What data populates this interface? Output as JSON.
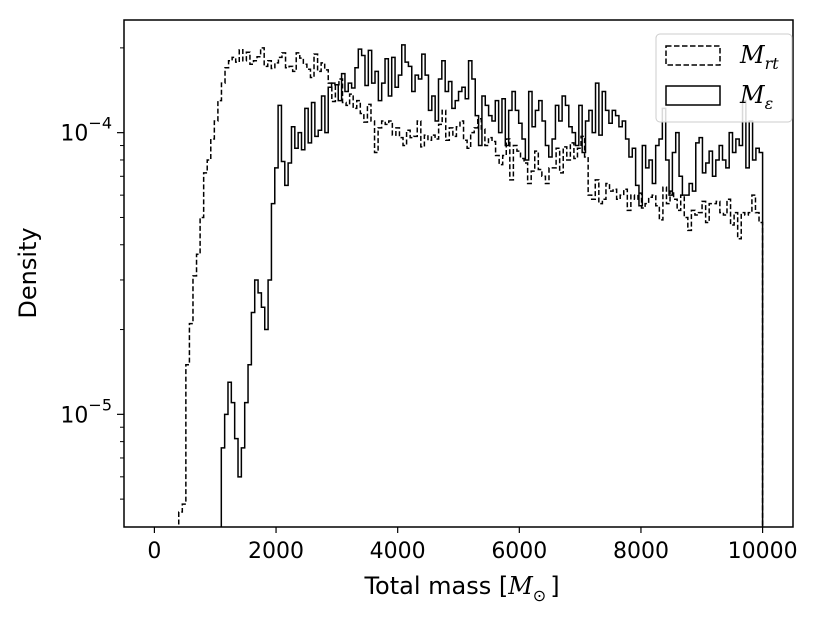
{
  "chart_data": {
    "type": "histogram",
    "xlabel": {
      "text": "Total mass [",
      "sym": "M",
      "sub": "⊙",
      "close": "]"
    },
    "ylabel": "Density",
    "xlim": [
      -500,
      10500
    ],
    "ylim_log10": [
      -5.4,
      -3.6
    ],
    "yscale": "log",
    "x_ticks": [
      0,
      2000,
      4000,
      6000,
      8000,
      10000
    ],
    "x_tick_labels": [
      "0",
      "2000",
      "4000",
      "6000",
      "8000",
      "10000"
    ],
    "y_major_ticks": [
      {
        "exp": -5,
        "base": "10",
        "sup": "−5"
      },
      {
        "exp": -4,
        "base": "10",
        "sup": "−4"
      }
    ],
    "y_minor_ticks": [
      5e-06,
      6e-06,
      7e-06,
      8e-06,
      9e-06,
      2e-05,
      3e-05,
      4e-05,
      5e-05,
      6e-05,
      7e-05,
      8e-05,
      9e-05,
      0.0002
    ],
    "grid": false,
    "legend": {
      "placement": "top-right",
      "entries": [
        {
          "sym": "M",
          "sub": "rt",
          "style": "dashed"
        },
        {
          "sym": "M",
          "sub": "ε",
          "style": "solid"
        }
      ]
    },
    "series": [
      {
        "style": "dashed",
        "color": "#000000",
        "edges": [
          400,
          10000
        ],
        "values": [
          4.5e-06,
          4.8e-06,
          1.5e-05,
          2.1e-05,
          3.1e-05,
          3.7e-05,
          5e-05,
          7.2e-05,
          8e-05,
          9.5e-05,
          0.00011,
          0.00013,
          0.00015,
          0.00017,
          0.00018,
          0.000185,
          0.000178,
          0.000197,
          0.00018,
          0.000193,
          0.000175,
          0.00018,
          0.000186,
          0.0002,
          0.000172,
          0.00018,
          0.000169,
          0.000177,
          0.000185,
          0.000192,
          0.00017,
          0.000172,
          0.000165,
          0.000192,
          0.000184,
          0.000175,
          0.000168,
          0.000157,
          0.00019,
          0.000165,
          0.000177,
          0.000167,
          0.00015,
          0.000129,
          0.000148,
          0.000155,
          0.000128,
          0.000125,
          0.000137,
          0.000122,
          0.00013,
          0.000117,
          0.000109,
          0.000126,
          0.00011,
          8.5e-05,
          0.000104,
          0.00011,
          0.000107,
          0.00011,
          9.8e-05,
          0.000104,
          9.6e-05,
          9e-05,
          0.000102,
          9.6e-05,
          9.7e-05,
          0.00011,
          8.9e-05,
          9.8e-05,
          9.4e-05,
          9.8e-05,
          9.5e-05,
          0.000107,
          0.00012,
          9.4e-05,
          0.000104,
          9.7e-05,
          0.000105,
          0.00011,
          9.4e-05,
          8.8e-05,
          0.0001,
          0.000104,
          0.000112,
          0.000103,
          9e-05,
          9.6e-05,
          9.3e-05,
          8.3e-05,
          7.7e-05,
          8.3e-05,
          9.5e-05,
          6.8e-05,
          9e-05,
          8.6e-05,
          8.1e-05,
          7.8e-05,
          6.6e-05,
          7.3e-05,
          8.6e-05,
          7.4e-05,
          7e-05,
          6.6e-05,
          7.5e-05,
          7.5e-05,
          8.8e-05,
          7.2e-05,
          8.9e-05,
          8e-05,
          9.2e-05,
          8.1e-05,
          8.8e-05,
          9.7e-05,
          8.2e-05,
          6e-05,
          5.8e-05,
          6.8e-05,
          5.6e-05,
          5.8e-05,
          6.6e-05,
          6.2e-05,
          6.3e-05,
          5.8e-05,
          6e-05,
          6.3e-05,
          5.3e-05,
          6e-05,
          5.8e-05,
          6.1e-05,
          5.4e-05,
          5.6e-05,
          5.9e-05,
          6e-05,
          5.5e-05,
          4.9e-05,
          6.4e-05,
          5.6e-05,
          6.2e-05,
          5.8e-05,
          5.3e-05,
          6e-05,
          5e-05,
          4.5e-05,
          5.3e-05,
          5.1e-05,
          5.2e-05,
          5.7e-05,
          4.8e-05,
          5.6e-05,
          5.6e-05,
          5.7e-05,
          5.2e-05,
          5.1e-05,
          5.8e-05,
          4.7e-05,
          5.2e-05,
          4.2e-05,
          5.2e-05,
          5.1e-05,
          5.2e-05,
          6e-05,
          5.2e-05,
          4.8e-05
        ]
      },
      {
        "style": "solid",
        "color": "#000000",
        "edges": [
          1100,
          10000
        ],
        "values": [
          7.6e-06,
          1e-05,
          1.3e-05,
          1.1e-05,
          8.2e-06,
          6e-06,
          7.6e-06,
          1.1e-05,
          1.5e-05,
          2.3e-05,
          3e-05,
          2.7e-05,
          2.4e-05,
          2e-05,
          3e-05,
          5.6e-05,
          7.5e-05,
          0.000125,
          7.9e-05,
          6.5e-05,
          7.8e-05,
          0.000105,
          8.8e-05,
          0.0001,
          8.7e-05,
          0.000122,
          9.2e-05,
          0.000128,
          9.7e-05,
          0.000102,
          0.000135,
          0.0001,
          0.000145,
          0.00015,
          0.000148,
          0.00013,
          0.000162,
          0.00014,
          0.00015,
          0.000144,
          0.00017,
          0.000198,
          0.000188,
          0.000147,
          0.000196,
          0.00015,
          0.000165,
          0.00013,
          0.00015,
          0.000183,
          0.000135,
          0.000185,
          0.000145,
          0.00016,
          0.000205,
          0.000178,
          0.000172,
          0.00014,
          0.00016,
          0.000155,
          0.00019,
          0.00016,
          0.00012,
          0.000135,
          0.00011,
          0.000155,
          0.00018,
          0.00014,
          0.000152,
          0.000122,
          0.00013,
          0.00014,
          0.000145,
          0.000132,
          0.00018,
          0.000155,
          0.000115,
          9e-05,
          0.000135,
          0.000125,
          0.000115,
          0.00011,
          0.00013,
          0.0001,
          0.000132,
          9e-05,
          0.00012,
          0.00014,
          0.00012,
          0.000108,
          9.5e-05,
          8e-05,
          0.00014,
          0.000105,
          0.00012,
          0.00013,
          0.00011,
          9e-05,
          8.2e-05,
          9.5e-05,
          0.000125,
          0.00011,
          0.000135,
          0.000125,
          0.000105,
          0.0001,
          9e-05,
          0.000125,
          8.5e-05,
          0.00011,
          0.00012,
          0.0001,
          0.00015,
          9.8e-05,
          0.00014,
          0.00012,
          0.000108,
          0.00012,
          0.000115,
          0.000105,
          0.00011,
          9.5e-05,
          8.2e-05,
          8.8e-05,
          6.5e-05,
          5.5e-05,
          9e-05,
          7.5e-05,
          8e-05,
          6.6e-05,
          9e-05,
          9.5e-05,
          0.000122,
          8e-05,
          6e-05,
          8.5e-05,
          0.0001,
          7e-05,
          6e-05,
          6e-05,
          6.6e-05,
          6.2e-05,
          9.2e-05,
          9.6e-05,
          7.2e-05,
          7.8e-05,
          8.6e-05,
          7e-05,
          8e-05,
          9e-05,
          8e-05,
          7.5e-05,
          0.0001,
          8.5e-05,
          9.5e-05,
          9e-05,
          0.00013,
          7.5e-05,
          0.00011,
          8e-05,
          8.8e-05,
          8.5e-05
        ]
      }
    ]
  }
}
